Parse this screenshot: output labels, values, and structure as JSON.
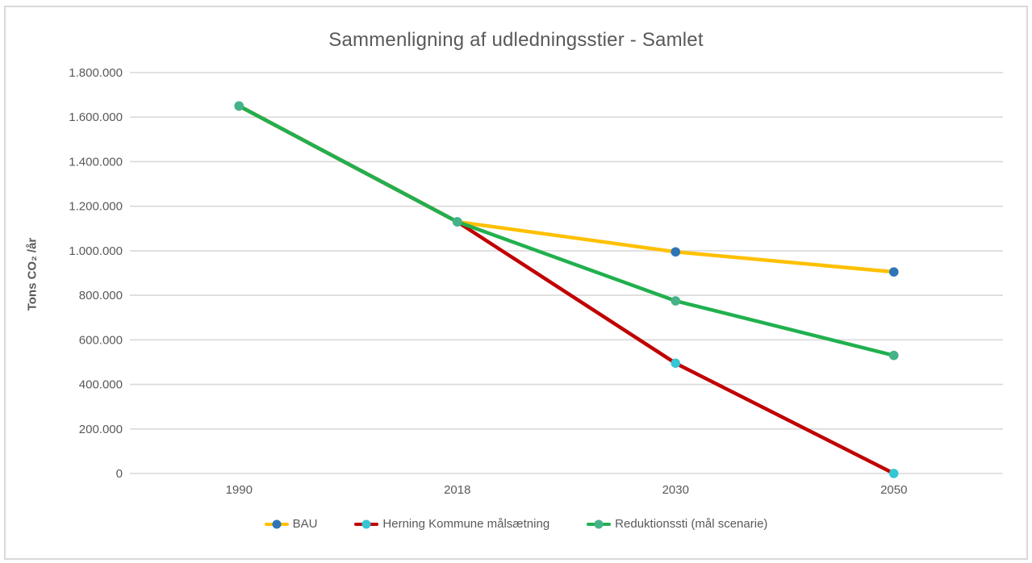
{
  "window": {
    "background": "#ffffff",
    "frame_border_color": "#d9d9d9"
  },
  "chart_data": {
    "type": "line",
    "title": "Sammenligning af udledningsstier - Samlet",
    "ylabel": "Tons CO₂ /år",
    "xlabel": "",
    "categories": [
      "1990",
      "2018",
      "2030",
      "2050"
    ],
    "series": [
      {
        "name": "BAU",
        "values": [
          1650000,
          1130000,
          995000,
          905000
        ],
        "line_color": "#FFC000",
        "marker_color": "#2E75B6"
      },
      {
        "name": "Herning Kommune målsætning",
        "values": [
          1650000,
          1130000,
          495000,
          0
        ],
        "line_color": "#C00000",
        "marker_color": "#35C6D4"
      },
      {
        "name": "Reduktionssti (mål scenarie)",
        "values": [
          1650000,
          1130000,
          775000,
          530000
        ],
        "line_color": "#21B04E",
        "marker_color": "#45B287"
      }
    ],
    "ylim": [
      0,
      1800000
    ],
    "y_ticks": [
      0,
      200000,
      400000,
      600000,
      800000,
      1000000,
      1200000,
      1400000,
      1600000,
      1800000
    ],
    "y_tick_labels": [
      "0",
      "200.000",
      "400.000",
      "600.000",
      "800.000",
      "1.000.000",
      "1.200.000",
      "1.400.000",
      "1.600.000",
      "1.800.000"
    ],
    "grid": "horizontal",
    "gridline_color": "#D9D9D9",
    "text_color": "#595959",
    "legend_position": "bottom"
  }
}
